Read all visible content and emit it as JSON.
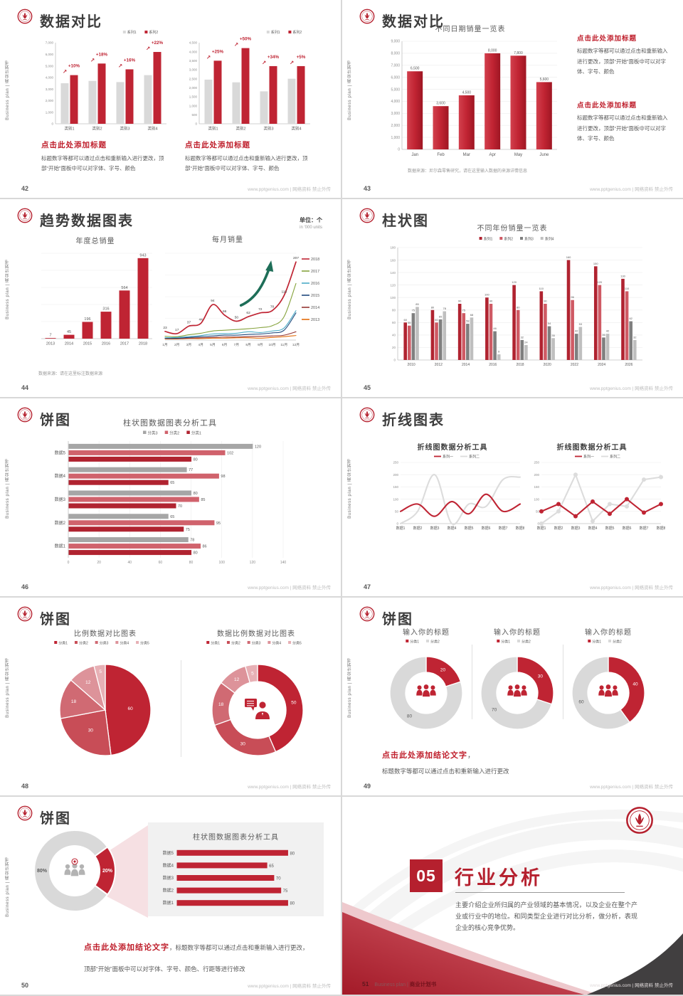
{
  "footer": "www.pptgenius.com | 网络资料 禁止外传",
  "sidebar_text": "Business plan | 商业计划书",
  "slides": [
    {
      "page": "42",
      "title": "数据对比",
      "blocks": [
        {
          "heading": "点击此处添加标题",
          "body": "标题数字等都可以通过点击和重新输入进行更改，顶部“开始”面板中可以对字体、字号、颜色"
        },
        {
          "heading": "点击此处添加标题",
          "body": "标题数字等都可以通过点击和重新输入进行更改，顶部“开始”面板中可以对字体、字号、颜色"
        }
      ]
    },
    {
      "page": "43",
      "title": "数据对比",
      "source": "数据来源：尼尔森零售研究，请在这里输入数据的来源详情信息",
      "blocks": [
        {
          "heading": "点击此处添加标题",
          "body": "标题数字等都可以通过点击和重新输入进行更改，顶部“开始”面板中可以对字体、字号、颜色"
        },
        {
          "heading": "点击此处添加标题",
          "body": "标题数字等都可以通过点击和重新输入进行更改，顶部“开始”面板中可以对字体、字号、颜色"
        }
      ]
    },
    {
      "page": "44",
      "title": "趋势数据图表",
      "unit1": "单位：个",
      "unit2": "in '000 units",
      "source": "数据来源：请在这里标注数据来源"
    },
    {
      "page": "45",
      "title": "柱状图"
    },
    {
      "page": "46",
      "title": "饼图"
    },
    {
      "page": "47",
      "title": "折线图表"
    },
    {
      "page": "48",
      "title": "饼图"
    },
    {
      "page": "49",
      "title": "饼图",
      "conclusion_heading": "点击此处添加结论文字",
      "conclusion_comma": "，",
      "conclusion_body": "标题数字等都可以通过点击和重新输入进行更改"
    },
    {
      "page": "50",
      "title": "饼图",
      "conclusion_heading": "点击此处添加结论文字",
      "conclusion_body": "，标题数字等都可以通过点击和重新输入进行更改，顶部“开始”面板中可以对字体、字号、颜色、行距等进行修改"
    },
    {
      "page": "51",
      "number": "05",
      "title": "行业分析",
      "body": "主要介绍企业所归属的产业领域的基本情况，以及企业在整个产业或行业中的地位。和同类型企业进行对比分析，做分析，表现企业的核心竞争优势。",
      "brand": "Business plan",
      "brand_cn": "商业计划书"
    }
  ],
  "chart_data": {
    "bar42L": {
      "type": "bar",
      "title": "",
      "legend": [
        "系列1",
        "系列2"
      ],
      "colors": [
        "#d9d9d9",
        "#bf2433"
      ],
      "categories": [
        "类别1",
        "类别2",
        "类别3",
        "类别4"
      ],
      "series": [
        {
          "name": "系列1",
          "values": [
            3500,
            3700,
            3600,
            4200
          ]
        },
        {
          "name": "系列2",
          "values": [
            4200,
            5200,
            4700,
            6200
          ]
        }
      ],
      "annotations": [
        "+10%",
        "+18%",
        "+16%",
        "+22%"
      ],
      "ymax": 7000,
      "ystep": 1000
    },
    "bar42R": {
      "type": "bar",
      "title": "",
      "legend": [
        "系列1",
        "系列2"
      ],
      "colors": [
        "#d9d9d9",
        "#bf2433"
      ],
      "categories": [
        "类别1",
        "类别2",
        "类别3",
        "类别4"
      ],
      "series": [
        {
          "name": "系列1",
          "values": [
            2450,
            2300,
            1800,
            2500
          ]
        },
        {
          "name": "系列2",
          "values": [
            3500,
            4200,
            3200,
            3200
          ]
        }
      ],
      "annotations": [
        "+25%",
        "+50%",
        "+34%",
        "+5%"
      ],
      "ymax": 4500,
      "ystep": 500
    },
    "bar43": {
      "type": "bar",
      "title": "不同日期销量一览表",
      "colors": [
        "#bf2433"
      ],
      "categories": [
        "Jan",
        "Feb",
        "Mar",
        "Apr",
        "May",
        "June"
      ],
      "series": [
        {
          "name": "销量",
          "values": [
            6500,
            3600,
            4500,
            8000,
            7800,
            5600
          ]
        }
      ],
      "value_labels": [
        "6,500",
        "3,600",
        "4,500",
        "8,000",
        "7,800",
        "5,600"
      ],
      "ymax": 9000,
      "ystep": 1000
    },
    "bar44": {
      "type": "bar",
      "title": "年度总销量",
      "colors": [
        "#bf2433"
      ],
      "categories": [
        "2013",
        "2014",
        "2015",
        "2016",
        "2017",
        "2018"
      ],
      "series": [
        {
          "name": "年度总销量",
          "values": [
            7,
            45,
            196,
            316,
            564,
            943
          ]
        }
      ],
      "ymax": 1000
    },
    "line44": {
      "type": "line",
      "title": "每月销量",
      "ymax": 230,
      "colors": [
        "#bf2433",
        "#86a33d",
        "#4bacc6",
        "#1f497d",
        "#943634",
        "#e36c0a"
      ],
      "x": [
        "1月",
        "2月",
        "3月",
        "4月",
        "5月",
        "6月",
        "7月",
        "8月",
        "9月",
        "10月",
        "11月",
        "12月"
      ],
      "series": [
        {
          "name": "2018",
          "values": [
            23,
            17,
            37,
            44,
            94,
            66,
            50,
            62,
            72,
            78,
            118,
            207
          ]
        },
        {
          "name": "2017",
          "values": [
            10,
            9,
            14,
            18,
            24,
            26,
            28,
            30,
            33,
            38,
            62,
            150
          ]
        },
        {
          "name": "2016",
          "values": [
            6,
            7,
            9,
            12,
            16,
            17,
            18,
            22,
            20,
            24,
            32,
            78
          ]
        },
        {
          "name": "2015",
          "values": [
            5,
            5,
            7,
            9,
            11,
            13,
            13,
            15,
            16,
            19,
            26,
            72
          ]
        },
        {
          "name": "2014",
          "values": [
            4,
            4,
            5,
            6,
            7,
            8,
            8,
            9,
            10,
            11,
            13,
            22
          ]
        },
        {
          "name": "2013",
          "values": [
            3,
            3,
            4,
            4,
            5,
            5,
            6,
            6,
            5,
            7,
            9,
            12
          ]
        }
      ]
    },
    "bar45": {
      "type": "bar",
      "title": "不同年份销量一览表",
      "legend": [
        "系列1",
        "系列2",
        "系列3",
        "系列4"
      ],
      "colors": [
        "#b02330",
        "#cf5a64",
        "#7f7f7f",
        "#bfbfbf"
      ],
      "categories": [
        "2010",
        "2012",
        "2014",
        "2016",
        "2018",
        "2020",
        "2022",
        "2024",
        "2026"
      ],
      "series": [
        {
          "name": "系列1",
          "values": [
            60,
            80,
            90,
            100,
            120,
            110,
            160,
            150,
            130
          ]
        },
        {
          "name": "系列2",
          "values": [
            55,
            60,
            75,
            90,
            80,
            90,
            96,
            120,
            110
          ]
        },
        {
          "name": "系列3",
          "values": [
            75,
            65,
            58,
            46,
            32,
            54,
            42,
            36,
            62
          ]
        },
        {
          "name": "系列4",
          "values": [
            85,
            78,
            68,
            9,
            24,
            35,
            53,
            42,
            32
          ]
        }
      ],
      "ymax": 180,
      "ystep": 20
    },
    "hbar46": {
      "type": "hbar",
      "title": "柱状图数据图表分析工具",
      "legend": [
        "分类3",
        "分类2",
        "分类1"
      ],
      "colors": [
        "#a6a6a6",
        "#d0626c",
        "#b02330"
      ],
      "categories": [
        "数据5",
        "数据4",
        "数据3",
        "数据2",
        "数据1"
      ],
      "series": [
        {
          "name": "分类3",
          "values": [
            120,
            77,
            80,
            65,
            78
          ]
        },
        {
          "name": "分类2",
          "values": [
            102,
            98,
            85,
            95,
            86
          ]
        },
        {
          "name": "分类1",
          "values": [
            80,
            65,
            70,
            75,
            80
          ]
        }
      ],
      "xmax": 140,
      "xstep": 20
    },
    "line47L": {
      "type": "line",
      "title": "折线图数据分析工具",
      "legend": [
        "系列一",
        "系列二"
      ],
      "colors": [
        "#bf2433",
        "#dcdcdc"
      ],
      "ymax": 250,
      "ystep": 50,
      "x": [
        "数据1",
        "数据2",
        "数据3",
        "数据4",
        "数据5",
        "数据6",
        "数据7",
        "数据8"
      ],
      "series": [
        {
          "name": "系列一",
          "values": [
            50,
            80,
            30,
            90,
            40,
            120,
            50,
            80
          ]
        },
        {
          "name": "系列二",
          "values": [
            0,
            50,
            200,
            0,
            80,
            70,
            180,
            190
          ]
        }
      ]
    },
    "line47R": {
      "type": "line",
      "title": "折线图数据分析工具",
      "legend": [
        "系列一",
        "系列二"
      ],
      "colors": [
        "#bf2433",
        "#dcdcdc"
      ],
      "ymax": 250,
      "ystep": 50,
      "x": [
        "数据1",
        "数据2",
        "数据3",
        "数据4",
        "数据5",
        "数据6",
        "数据7",
        "数据8"
      ],
      "series": [
        {
          "name": "系列一",
          "values": [
            50,
            80,
            30,
            90,
            40,
            100,
            45,
            80
          ]
        },
        {
          "name": "系列二",
          "values": [
            0,
            50,
            200,
            10,
            80,
            70,
            180,
            190
          ]
        }
      ]
    },
    "pie48L": {
      "type": "pie",
      "title": "比例数据对比图表",
      "legend": [
        "分类1",
        "分类2",
        "分类3",
        "分类4",
        "分类5"
      ],
      "colors": [
        "#bf2433",
        "#c84d57",
        "#d06a73",
        "#dd939a",
        "#e7b0b5"
      ],
      "values": [
        60,
        30,
        18,
        12,
        5
      ]
    },
    "pie48R": {
      "type": "pie",
      "title": "数据比例数据对比图表",
      "legend": [
        "分类1",
        "分类2",
        "分类3",
        "分类4",
        "分类5"
      ],
      "colors": [
        "#bf2433",
        "#c84d57",
        "#d06a73",
        "#dd939a",
        "#e7b0b5"
      ],
      "values": [
        50,
        30,
        18,
        12,
        5
      ]
    },
    "donut49a": {
      "type": "pie",
      "title": "输入你的标题",
      "legend": [
        "分类1",
        "分类2"
      ],
      "colors": [
        "#bf2433",
        "#d9d9d9"
      ],
      "values": [
        20,
        80
      ]
    },
    "donut49b": {
      "type": "pie",
      "title": "输入你的标题",
      "legend": [
        "分类1",
        "分类2"
      ],
      "colors": [
        "#bf2433",
        "#d9d9d9"
      ],
      "values": [
        30,
        70
      ]
    },
    "donut49c": {
      "type": "pie",
      "title": "输入你的标题",
      "legend": [
        "分类1",
        "分类2"
      ],
      "colors": [
        "#bf2433",
        "#d9d9d9"
      ],
      "values": [
        40,
        60
      ]
    },
    "donut50": {
      "type": "pie",
      "colors": [
        "#bf2433",
        "#d9d9d9"
      ],
      "values": [
        20,
        80
      ],
      "labels": [
        "20%",
        "80%"
      ]
    },
    "hbar50": {
      "type": "hbar",
      "title": "柱状图数据图表分析工具",
      "colors": [
        "#bf2433"
      ],
      "categories": [
        "数据5",
        "数据4",
        "数据3",
        "数据2",
        "数据1"
      ],
      "series": [
        {
          "name": "数据",
          "values": [
            80,
            65,
            70,
            75,
            80
          ]
        }
      ],
      "xmax": 90
    }
  }
}
